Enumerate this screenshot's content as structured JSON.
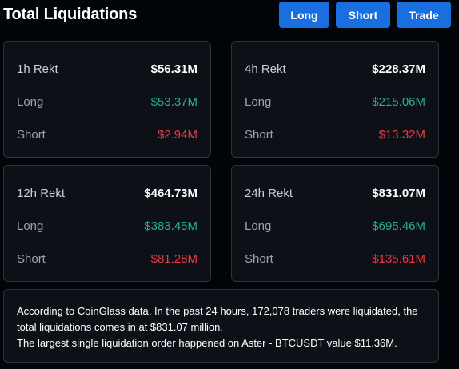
{
  "header": {
    "title": "Total Liquidations",
    "buttons": {
      "long": "Long",
      "short": "Short",
      "trade": "Trade"
    }
  },
  "cards": [
    {
      "period": "1h Rekt",
      "total": "$56.31M",
      "long_label": "Long",
      "long_value": "$53.37M",
      "short_label": "Short",
      "short_value": "$2.94M"
    },
    {
      "period": "4h Rekt",
      "total": "$228.37M",
      "long_label": "Long",
      "long_value": "$215.06M",
      "short_label": "Short",
      "short_value": "$13.32M"
    },
    {
      "period": "12h Rekt",
      "total": "$464.73M",
      "long_label": "Long",
      "long_value": "$383.45M",
      "short_label": "Short",
      "short_value": "$81.28M"
    },
    {
      "period": "24h Rekt",
      "total": "$831.07M",
      "long_label": "Long",
      "long_value": "$695.46M",
      "short_label": "Short",
      "short_value": "$135.61M"
    }
  ],
  "summary": {
    "line1": "According to CoinGlass data, In the past 24 hours, 172,078 traders were liquidated, the total liquidations comes in at $831.07 million.",
    "line2": "The largest single liquidation order happened on Aster - BTCUSDT value $11.36M."
  },
  "colors": {
    "accent": "#1a6fe0",
    "long": "#27b08a",
    "short": "#ea3943",
    "background": "#010409",
    "card": "#0d1117"
  }
}
